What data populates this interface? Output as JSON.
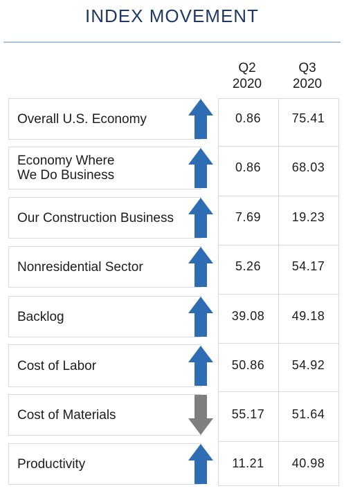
{
  "title": "INDEX MOVEMENT",
  "columns": [
    {
      "line1": "Q2",
      "line2": "2020"
    },
    {
      "line1": "Q3",
      "line2": "2020"
    }
  ],
  "colors": {
    "up": "#2e6db4",
    "down": "#7f7f7f",
    "title": "#1f3864",
    "rule": "#a9c4db"
  },
  "chart_data": {
    "type": "table",
    "title": "INDEX MOVEMENT",
    "columns": [
      "Q2 2020",
      "Q3 2020"
    ],
    "rows": [
      {
        "label": "Overall U.S. Economy",
        "direction": "up",
        "q2": "0.86",
        "q3": "75.41"
      },
      {
        "label": "Economy Where\nWe Do Business",
        "direction": "up",
        "q2": "0.86",
        "q3": "68.03"
      },
      {
        "label": "Our Construction Business",
        "direction": "up",
        "q2": "7.69",
        "q3": "19.23"
      },
      {
        "label": "Nonresidential Sector",
        "direction": "up",
        "q2": "5.26",
        "q3": "54.17"
      },
      {
        "label": "Backlog",
        "direction": "up",
        "q2": "39.08",
        "q3": "49.18"
      },
      {
        "label": "Cost of Labor",
        "direction": "up",
        "q2": "50.86",
        "q3": "54.92"
      },
      {
        "label": "Cost of Materials",
        "direction": "down",
        "q2": "55.17",
        "q3": "51.64"
      },
      {
        "label": "Productivity",
        "direction": "up",
        "q2": "11.21",
        "q3": "40.98"
      }
    ]
  }
}
